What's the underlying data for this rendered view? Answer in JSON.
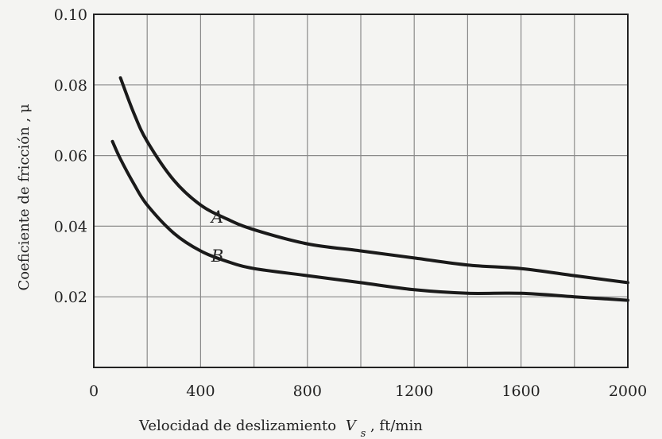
{
  "chart_data": {
    "type": "line",
    "title": "",
    "xlabel": "Velocidad de deslizamiento",
    "xlabel_symbol": "V",
    "xlabel_subscript": "s",
    "xlabel_units": ", ft/min",
    "ylabel": "Coeficiente de fricción , μ",
    "xlim": [
      0,
      2000
    ],
    "ylim": [
      0.0,
      0.1
    ],
    "x_ticks": [
      0,
      400,
      800,
      1200,
      1600,
      2000
    ],
    "x_tick_labels": [
      "0",
      "400",
      "800",
      "1200",
      "1600",
      "2000"
    ],
    "y_ticks": [
      0.02,
      0.04,
      0.06,
      0.08,
      0.1
    ],
    "y_tick_labels": [
      "0.02",
      "0.04",
      "0.06",
      "0.08",
      "0.10"
    ],
    "grid": true,
    "series": [
      {
        "name": "A",
        "x": [
          100,
          150,
          200,
          300,
          400,
          500,
          600,
          800,
          1000,
          1200,
          1400,
          1600,
          1800,
          2000
        ],
        "y": [
          0.082,
          0.072,
          0.064,
          0.053,
          0.046,
          0.042,
          0.039,
          0.035,
          0.033,
          0.031,
          0.029,
          0.028,
          0.026,
          0.024
        ]
      },
      {
        "name": "B",
        "x": [
          70,
          100,
          150,
          200,
          300,
          400,
          500,
          600,
          800,
          1000,
          1200,
          1400,
          1600,
          1800,
          2000
        ],
        "y": [
          0.064,
          0.059,
          0.052,
          0.046,
          0.038,
          0.033,
          0.03,
          0.028,
          0.026,
          0.024,
          0.022,
          0.021,
          0.021,
          0.02,
          0.019
        ]
      }
    ]
  }
}
